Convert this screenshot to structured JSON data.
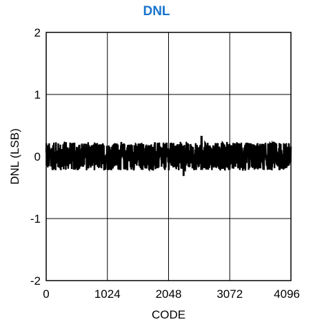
{
  "chart_data": {
    "type": "line",
    "title": "DNL",
    "title_color": "#1874CD",
    "xlabel": "CODE",
    "ylabel": "DNL (LSB)",
    "xlim": [
      0,
      4096
    ],
    "ylim": [
      -2,
      2
    ],
    "x_ticks": [
      0,
      1024,
      2048,
      3072,
      4096
    ],
    "x_tick_labels": [
      "0",
      "1024",
      "2048",
      "3072",
      "4096"
    ],
    "y_ticks": [
      2,
      1,
      0,
      -1,
      -2
    ],
    "y_tick_labels": [
      "2",
      "1",
      "0",
      "-1",
      "-2"
    ],
    "grid": true,
    "series": [
      {
        "color": "#000000",
        "noise_band_approx": [
          -0.25,
          0.25
        ],
        "peak_approx": {
          "x": 2600,
          "y": 0.32
        },
        "min_approx": {
          "x": 2300,
          "y": -0.3
        }
      }
    ]
  }
}
